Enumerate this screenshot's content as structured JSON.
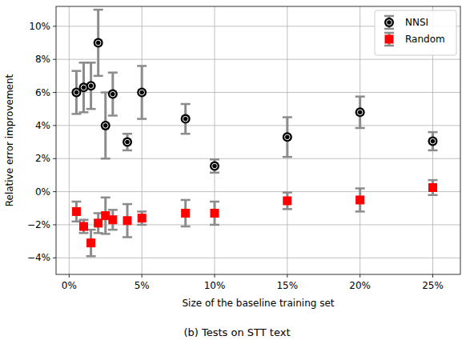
{
  "chart_data": {
    "type": "scatter",
    "title": "(b) Tests on STT text",
    "x_label": "Size of the baseline training set",
    "y_label": "Relative error improvement",
    "x": [
      0.5,
      1,
      1.5,
      2,
      2.5,
      3,
      4,
      5,
      8,
      10,
      15,
      20,
      25
    ],
    "series": [
      {
        "name": "NNSI",
        "color": "#000000",
        "marker": "circle",
        "values": [
          6.0,
          6.3,
          6.4,
          9.0,
          4.0,
          5.9,
          3.0,
          6.0,
          4.4,
          1.55,
          3.3,
          4.8,
          3.05
        ],
        "errors": [
          1.3,
          1.5,
          1.4,
          2.0,
          2.0,
          1.3,
          0.5,
          1.6,
          0.9,
          0.4,
          1.2,
          0.95,
          0.55
        ]
      },
      {
        "name": "Random",
        "color": "#ff0000",
        "marker": "square",
        "values": [
          -1.2,
          -2.1,
          -3.1,
          -1.9,
          -1.45,
          -1.7,
          -1.75,
          -1.6,
          -1.3,
          -1.3,
          -0.55,
          -0.5,
          0.25
        ],
        "errors": [
          0.6,
          0.4,
          0.8,
          0.6,
          1.1,
          0.6,
          1.0,
          0.4,
          0.8,
          0.7,
          0.5,
          0.7,
          0.45
        ]
      }
    ],
    "xlim": [
      -0.9,
      26.9
    ],
    "ylim": [
      -5,
      11.2
    ],
    "xticks": [
      {
        "value": 0,
        "label": "0%"
      },
      {
        "value": 5,
        "label": "5%"
      },
      {
        "value": 10,
        "label": "10%"
      },
      {
        "value": 15,
        "label": "15%"
      },
      {
        "value": 20,
        "label": "20%"
      },
      {
        "value": 25,
        "label": "25%"
      }
    ],
    "yticks": [
      {
        "value": -4,
        "label": "−4%"
      },
      {
        "value": -2,
        "label": "−2%"
      },
      {
        "value": 0,
        "label": "0%"
      },
      {
        "value": 2,
        "label": "2%"
      },
      {
        "value": 4,
        "label": "4%"
      },
      {
        "value": 6,
        "label": "6%"
      },
      {
        "value": 8,
        "label": "8%"
      },
      {
        "value": 10,
        "label": "10%"
      }
    ],
    "grid": true,
    "legend": "upper right"
  }
}
